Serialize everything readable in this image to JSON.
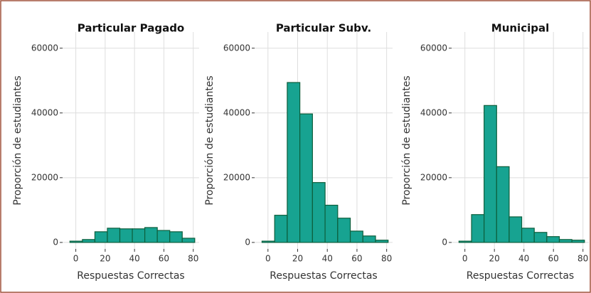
{
  "chart_data": [
    {
      "type": "histogram",
      "title": "Particular Pagado",
      "xlabel": "Respuestas Correctas",
      "ylabel": "Proporción de estudiantes",
      "bins": [
        -4,
        4.5,
        13,
        21.5,
        30,
        38.5,
        47,
        55.5,
        64,
        72.5,
        81
      ],
      "counts": [
        400,
        900,
        3300,
        4400,
        4200,
        4200,
        4600,
        3700,
        3300,
        1300
      ],
      "color": "#17a391",
      "edgecolor": "#0d5e3c",
      "grid": true,
      "xlim": [
        -9,
        84
      ],
      "ylim": [
        -2000,
        65000
      ],
      "xticks": [
        0,
        20,
        40,
        60,
        80
      ],
      "yticks": [
        0,
        20000,
        40000,
        60000
      ]
    },
    {
      "type": "histogram",
      "title": "Particular Subv.",
      "xlabel": "Respuestas Correctas",
      "ylabel": "Proporción de estudiantes",
      "bins": [
        -4,
        4.5,
        13,
        21.5,
        30,
        38.5,
        47,
        55.5,
        64,
        72.5,
        81
      ],
      "counts": [
        400,
        8400,
        49400,
        39700,
        18500,
        11500,
        7500,
        3500,
        2000,
        700
      ],
      "color": "#17a391",
      "edgecolor": "#0d5e3c",
      "grid": true,
      "xlim": [
        -9,
        84
      ],
      "ylim": [
        -2000,
        65000
      ],
      "xticks": [
        0,
        20,
        40,
        60,
        80
      ],
      "yticks": [
        0,
        20000,
        40000,
        60000
      ]
    },
    {
      "type": "histogram",
      "title": "Municipal",
      "xlabel": "Respuestas Correctas",
      "ylabel": "Proporción de estudiantes",
      "bins": [
        -4,
        4.5,
        13,
        21.5,
        30,
        38.5,
        47,
        55.5,
        64,
        72.5,
        81
      ],
      "counts": [
        400,
        8600,
        42300,
        23400,
        7900,
        4400,
        3100,
        1800,
        900,
        700
      ],
      "color": "#17a391",
      "edgecolor": "#0d5e3c",
      "grid": true,
      "xlim": [
        -9,
        84
      ],
      "ylim": [
        -2000,
        65000
      ],
      "xticks": [
        0,
        20,
        40,
        60,
        80
      ],
      "yticks": [
        0,
        20000,
        40000,
        60000
      ]
    }
  ]
}
